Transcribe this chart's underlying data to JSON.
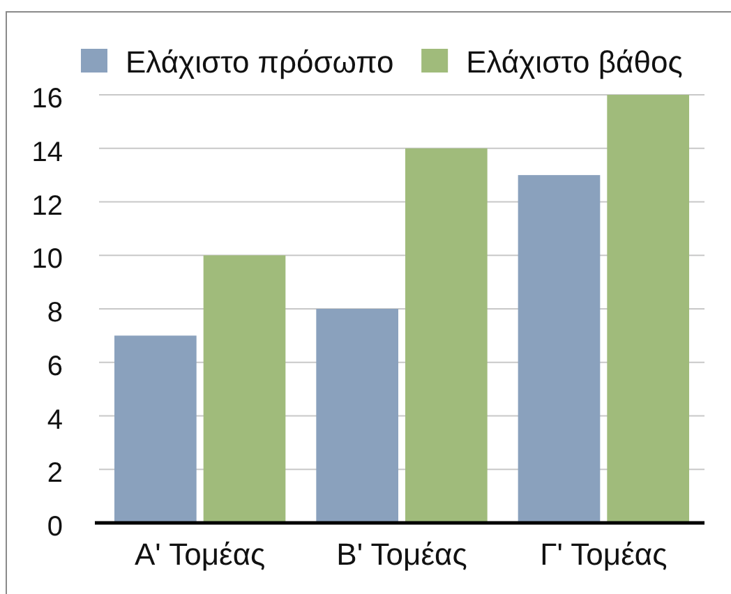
{
  "chart_data": {
    "type": "bar",
    "categories": [
      "Α' Τομέας",
      "Β' Τομέας",
      "Γ' Τομέας"
    ],
    "series": [
      {
        "name": "Ελάχιστο πρόσωπο",
        "color": "#8aa1bd",
        "values": [
          7,
          8,
          13
        ]
      },
      {
        "name": "Ελάχιστο βάθος",
        "color": "#a0bb7b",
        "values": [
          10,
          14,
          16
        ]
      }
    ],
    "ylim": [
      0,
      16
    ],
    "yticks": [
      0,
      2,
      4,
      6,
      8,
      10,
      12,
      14,
      16
    ],
    "grid": "y",
    "legend": "top"
  }
}
